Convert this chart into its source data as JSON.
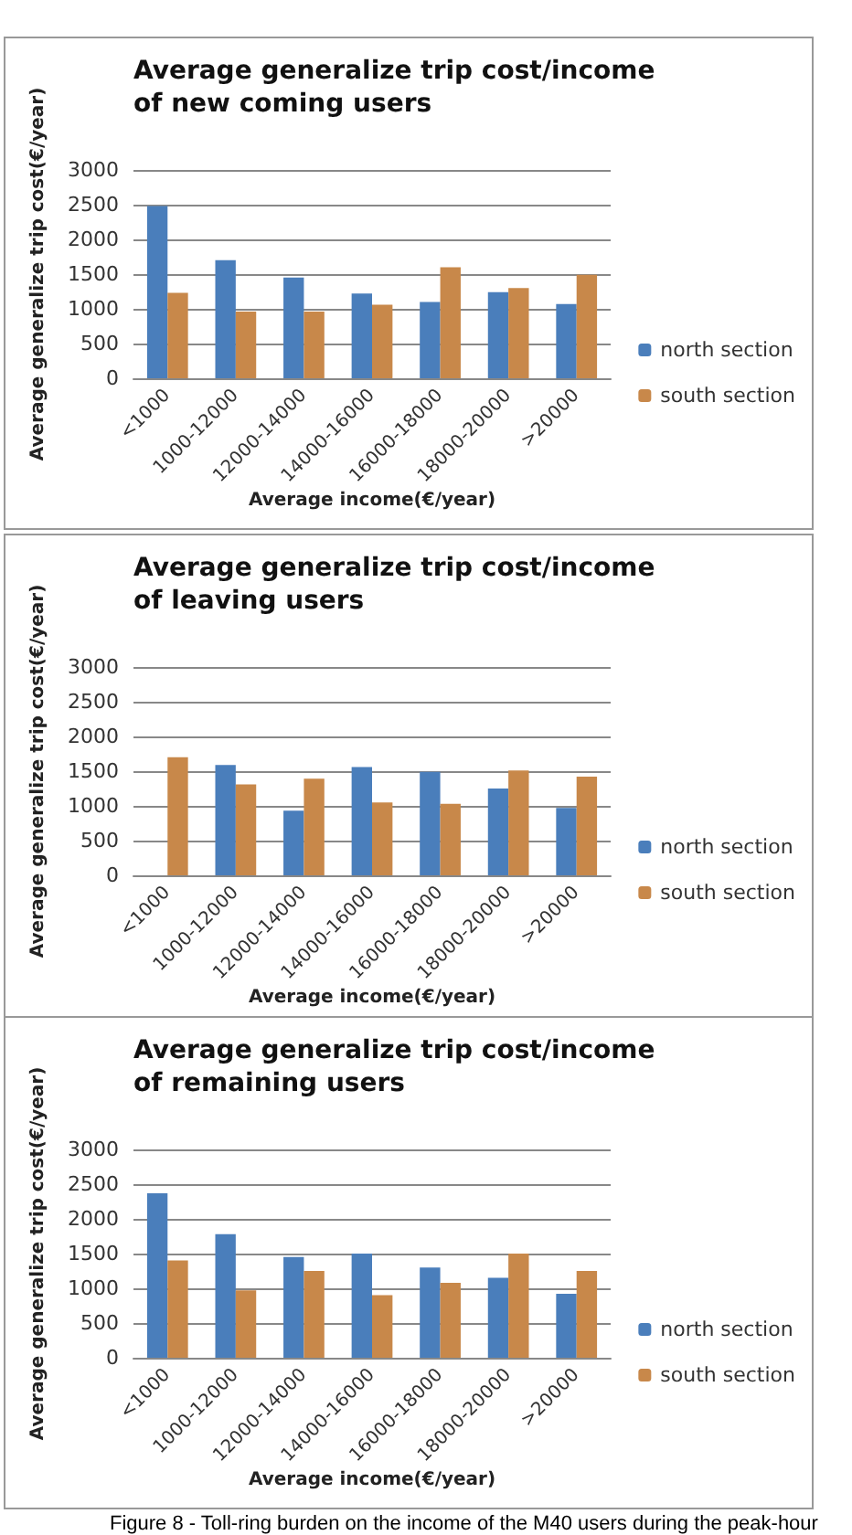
{
  "chart_data": [
    {
      "type": "bar",
      "title": "Average generalize trip cost/income of new coming users",
      "xlabel": "Average income(€/year)",
      "ylabel": "Average generalize trip cost(€/year)",
      "categories": [
        "<1000",
        "1000-12000",
        "12000-14000",
        "14000-16000",
        "16000-18000",
        "18000-20000",
        ">20000"
      ],
      "series": [
        {
          "name": "north section",
          "color": "#4a7ebb",
          "values": [
            2480,
            1700,
            1450,
            1220,
            1100,
            1240,
            1070
          ]
        },
        {
          "name": "south section",
          "color": "#c8884a",
          "values": [
            1230,
            960,
            960,
            1060,
            1600,
            1300,
            1490
          ]
        }
      ],
      "ylim": [
        0,
        3000
      ],
      "yticks": [
        0,
        500,
        1000,
        1500,
        2000,
        2500,
        3000
      ],
      "grid": "y",
      "legend": "right"
    },
    {
      "type": "bar",
      "title": "Average generalize trip cost/income of leaving users",
      "xlabel": "Average income(€/year)",
      "ylabel": "Average generalize trip cost(€/year)",
      "categories": [
        "<1000",
        "1000-12000",
        "12000-14000",
        "14000-16000",
        "16000-18000",
        "18000-20000",
        ">20000"
      ],
      "series": [
        {
          "name": "north section",
          "color": "#4a7ebb",
          "values": [
            null,
            1590,
            930,
            1560,
            1490,
            1250,
            970
          ]
        },
        {
          "name": "south section",
          "color": "#c8884a",
          "values": [
            1700,
            1310,
            1390,
            1050,
            1030,
            1510,
            1420
          ]
        }
      ],
      "ylim": [
        0,
        3000
      ],
      "yticks": [
        0,
        500,
        1000,
        1500,
        2000,
        2500,
        3000
      ],
      "grid": "y",
      "legend": "right"
    },
    {
      "type": "bar",
      "title": "Average generalize trip cost/income of remaining users",
      "xlabel": "Average income(€/year)",
      "ylabel": "Average generalize trip cost(€/year)",
      "categories": [
        "<1000",
        "1000-12000",
        "12000-14000",
        "14000-16000",
        "16000-18000",
        "18000-20000",
        ">20000"
      ],
      "series": [
        {
          "name": "north section",
          "color": "#4a7ebb",
          "values": [
            2370,
            1780,
            1450,
            1500,
            1300,
            1150,
            920
          ]
        },
        {
          "name": "south section",
          "color": "#c8884a",
          "values": [
            1400,
            970,
            1250,
            900,
            1080,
            1500,
            1250
          ]
        }
      ],
      "ylim": [
        0,
        3000
      ],
      "yticks": [
        0,
        500,
        1000,
        1500,
        2000,
        2500,
        3000
      ],
      "grid": "y",
      "legend": "right",
      "annotations": [
        "Figure 8 - Toll-ring burden on the income of the M40 users during the peak-hour"
      ]
    }
  ]
}
